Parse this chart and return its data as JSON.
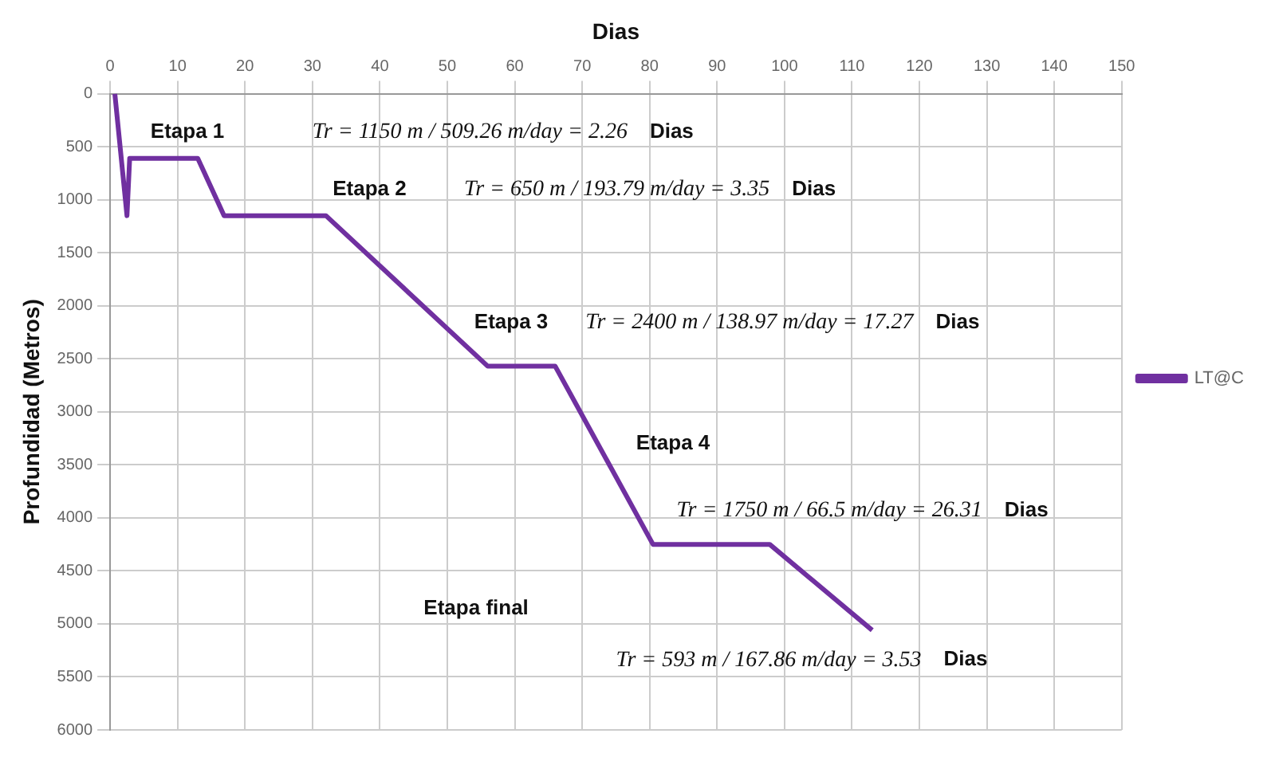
{
  "chart_data": {
    "type": "line",
    "xlabel": "Dias",
    "ylabel": "Profundidad (Metros)",
    "series": [
      {
        "name": "LT@C",
        "color": "#7030a0",
        "x": [
          0.7,
          2.5,
          2.9,
          13,
          16.9,
          32,
          56,
          66,
          80.5,
          97.8,
          113
        ],
        "values": [
          0,
          1150,
          610,
          610,
          1150,
          1150,
          2570,
          2570,
          4250,
          4250,
          5060
        ]
      }
    ],
    "xlim": [
      0,
      150
    ],
    "xticks": [
      0,
      10,
      20,
      30,
      40,
      50,
      60,
      70,
      80,
      90,
      100,
      110,
      120,
      130,
      140,
      150
    ],
    "ylim": [
      6000,
      0
    ],
    "yticks": [
      0,
      500,
      1000,
      1500,
      2000,
      2500,
      3000,
      3500,
      4000,
      4500,
      5000,
      5500,
      6000
    ],
    "grid": true,
    "legend": "right",
    "marker": "none",
    "line_style": "solid",
    "annotations": [
      "Etapa 1",
      "Tr = 1150 m / 509.26 m/day = 2.26",
      "Dias",
      "Etapa 2",
      "Tr = 650 m / 193.79 m/day = 3.35",
      "Dias",
      "Etapa 3",
      "Tr = 2400 m / 138.97 m/day = 17.27",
      "Dias",
      "Etapa 4",
      "Tr = 1750 m / 66.5 m/day = 26.31",
      "Dias",
      "Etapa final",
      "Tr = 593 m / 167.86 m/day = 3.53",
      "Dias"
    ]
  }
}
